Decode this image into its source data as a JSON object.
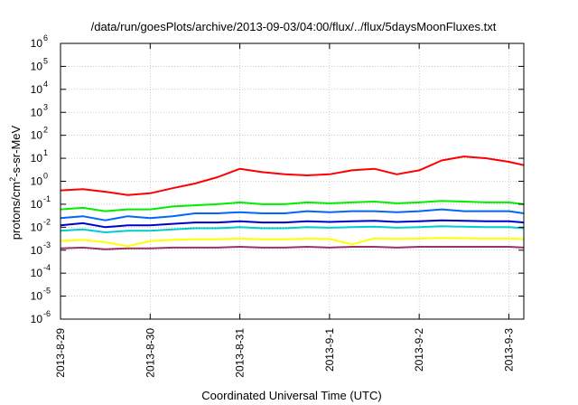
{
  "chart_data": {
    "type": "line",
    "title": "/data/run/goesPlots/archive/2013-09-03/04:00/flux/../flux/5daysMoonFluxes.txt",
    "xlabel": "Coordinated Universal Time (UTC)",
    "ylabel_parts": {
      "pre": "protons/cm",
      "sup": "2",
      "post": "-s-sr-MeV"
    },
    "y_scale": "log",
    "ylim": [
      1e-06,
      1000000.0
    ],
    "y_ticks": [
      {
        "value": 1e-06,
        "base": "10",
        "exp": "-6"
      },
      {
        "value": 1e-05,
        "base": "10",
        "exp": "-5"
      },
      {
        "value": 0.0001,
        "base": "10",
        "exp": "-4"
      },
      {
        "value": 0.001,
        "base": "10",
        "exp": "-3"
      },
      {
        "value": 0.01,
        "base": "10",
        "exp": "-2"
      },
      {
        "value": 0.1,
        "base": "10",
        "exp": "-1"
      },
      {
        "value": 1,
        "base": "10",
        "exp": "0"
      },
      {
        "value": 10,
        "base": "10",
        "exp": "1"
      },
      {
        "value": 100,
        "base": "10",
        "exp": "2"
      },
      {
        "value": 1000,
        "base": "10",
        "exp": "3"
      },
      {
        "value": 10000,
        "base": "10",
        "exp": "4"
      },
      {
        "value": 100000,
        "base": "10",
        "exp": "5"
      },
      {
        "value": 1000000,
        "base": "10",
        "exp": "6"
      }
    ],
    "xlim": [
      "2013-08-29T00:00",
      "2013-09-03T04:00"
    ],
    "x_ticks": [
      {
        "value": "2013-08-29T00:00",
        "label": "2013-8-29"
      },
      {
        "value": "2013-08-30T00:00",
        "label": "2013-8-30"
      },
      {
        "value": "2013-08-31T00:00",
        "label": "2013-8-31"
      },
      {
        "value": "2013-09-01T00:00",
        "label": "2013-9-1"
      },
      {
        "value": "2013-09-02T00:00",
        "label": "2013-9-2"
      },
      {
        "value": "2013-09-03T00:00",
        "label": "2013-9-3"
      }
    ],
    "grid": true,
    "series": [
      {
        "color": "#ff0000",
        "x": [
          "2013-08-29T00:00",
          "2013-08-29T06:00",
          "2013-08-29T12:00",
          "2013-08-29T18:00",
          "2013-08-30T00:00",
          "2013-08-30T06:00",
          "2013-08-30T12:00",
          "2013-08-30T18:00",
          "2013-08-31T00:00",
          "2013-08-31T06:00",
          "2013-08-31T12:00",
          "2013-08-31T18:00",
          "2013-09-01T00:00",
          "2013-09-01T06:00",
          "2013-09-01T12:00",
          "2013-09-01T18:00",
          "2013-09-02T00:00",
          "2013-09-02T06:00",
          "2013-09-02T12:00",
          "2013-09-02T18:00",
          "2013-09-03T00:00",
          "2013-09-03T04:00"
        ],
        "y": [
          0.4,
          0.45,
          0.35,
          0.25,
          0.3,
          0.5,
          0.8,
          1.5,
          3.5,
          2.5,
          2.0,
          1.8,
          2.0,
          3.0,
          3.5,
          2.0,
          3.0,
          8.0,
          12,
          10,
          7,
          5
        ]
      },
      {
        "color": "#00ee00",
        "x": [
          "2013-08-29T00:00",
          "2013-08-29T06:00",
          "2013-08-29T12:00",
          "2013-08-29T18:00",
          "2013-08-30T00:00",
          "2013-08-30T06:00",
          "2013-08-30T12:00",
          "2013-08-30T18:00",
          "2013-08-31T00:00",
          "2013-08-31T06:00",
          "2013-08-31T12:00",
          "2013-08-31T18:00",
          "2013-09-01T00:00",
          "2013-09-01T06:00",
          "2013-09-01T12:00",
          "2013-09-01T18:00",
          "2013-09-02T00:00",
          "2013-09-02T06:00",
          "2013-09-02T12:00",
          "2013-09-02T18:00",
          "2013-09-03T00:00",
          "2013-09-03T04:00"
        ],
        "y": [
          0.06,
          0.07,
          0.05,
          0.06,
          0.06,
          0.08,
          0.09,
          0.1,
          0.12,
          0.1,
          0.1,
          0.12,
          0.11,
          0.12,
          0.13,
          0.11,
          0.12,
          0.14,
          0.13,
          0.12,
          0.12,
          0.1
        ]
      },
      {
        "color": "#0066ff",
        "x": [
          "2013-08-29T00:00",
          "2013-08-29T06:00",
          "2013-08-29T12:00",
          "2013-08-29T18:00",
          "2013-08-30T00:00",
          "2013-08-30T06:00",
          "2013-08-30T12:00",
          "2013-08-30T18:00",
          "2013-08-31T00:00",
          "2013-08-31T06:00",
          "2013-08-31T12:00",
          "2013-08-31T18:00",
          "2013-09-01T00:00",
          "2013-09-01T06:00",
          "2013-09-01T12:00",
          "2013-09-01T18:00",
          "2013-09-02T00:00",
          "2013-09-02T06:00",
          "2013-09-02T12:00",
          "2013-09-02T18:00",
          "2013-09-03T00:00",
          "2013-09-03T04:00"
        ],
        "y": [
          0.025,
          0.03,
          0.02,
          0.03,
          0.025,
          0.03,
          0.04,
          0.04,
          0.045,
          0.04,
          0.04,
          0.05,
          0.045,
          0.05,
          0.05,
          0.045,
          0.05,
          0.06,
          0.05,
          0.05,
          0.05,
          0.04
        ]
      },
      {
        "color": "#0000cc",
        "x": [
          "2013-08-29T00:00",
          "2013-08-29T06:00",
          "2013-08-29T12:00",
          "2013-08-29T18:00",
          "2013-08-30T00:00",
          "2013-08-30T06:00",
          "2013-08-30T12:00",
          "2013-08-30T18:00",
          "2013-08-31T00:00",
          "2013-08-31T06:00",
          "2013-08-31T12:00",
          "2013-08-31T18:00",
          "2013-09-01T00:00",
          "2013-09-01T06:00",
          "2013-09-01T12:00",
          "2013-09-01T18:00",
          "2013-09-02T00:00",
          "2013-09-02T06:00",
          "2013-09-02T12:00",
          "2013-09-02T18:00",
          "2013-09-03T00:00",
          "2013-09-03T04:00"
        ],
        "y": [
          0.012,
          0.015,
          0.01,
          0.012,
          0.012,
          0.014,
          0.016,
          0.016,
          0.018,
          0.016,
          0.016,
          0.018,
          0.017,
          0.018,
          0.019,
          0.017,
          0.018,
          0.02,
          0.019,
          0.018,
          0.018,
          0.016
        ]
      },
      {
        "color": "#00cccc",
        "x": [
          "2013-08-29T00:00",
          "2013-08-29T06:00",
          "2013-08-29T12:00",
          "2013-08-29T18:00",
          "2013-08-30T00:00",
          "2013-08-30T06:00",
          "2013-08-30T12:00",
          "2013-08-30T18:00",
          "2013-08-31T00:00",
          "2013-08-31T06:00",
          "2013-08-31T12:00",
          "2013-08-31T18:00",
          "2013-09-01T00:00",
          "2013-09-01T06:00",
          "2013-09-01T12:00",
          "2013-09-01T18:00",
          "2013-09-02T00:00",
          "2013-09-02T06:00",
          "2013-09-02T12:00",
          "2013-09-02T18:00",
          "2013-09-03T00:00",
          "2013-09-03T04:00"
        ],
        "y": [
          0.007,
          0.008,
          0.006,
          0.007,
          0.007,
          0.008,
          0.009,
          0.009,
          0.01,
          0.009,
          0.009,
          0.01,
          0.0095,
          0.01,
          0.0105,
          0.0095,
          0.01,
          0.011,
          0.0105,
          0.01,
          0.01,
          0.009
        ]
      },
      {
        "color": "#ffff00",
        "x": [
          "2013-08-29T00:00",
          "2013-08-29T06:00",
          "2013-08-29T12:00",
          "2013-08-29T18:00",
          "2013-08-30T00:00",
          "2013-08-30T06:00",
          "2013-08-30T12:00",
          "2013-08-30T18:00",
          "2013-08-31T00:00",
          "2013-08-31T06:00",
          "2013-08-31T12:00",
          "2013-08-31T18:00",
          "2013-09-01T00:00",
          "2013-09-01T06:00",
          "2013-09-01T12:00",
          "2013-09-01T18:00",
          "2013-09-02T00:00",
          "2013-09-02T06:00",
          "2013-09-02T12:00",
          "2013-09-02T18:00",
          "2013-09-03T00:00",
          "2013-09-03T04:00"
        ],
        "y": [
          0.0025,
          0.0028,
          0.0022,
          0.0015,
          0.0025,
          0.0028,
          0.003,
          0.003,
          0.0032,
          0.003,
          0.003,
          0.0032,
          0.0031,
          0.0018,
          0.0033,
          0.0031,
          0.0032,
          0.0034,
          0.0033,
          0.0032,
          0.0032,
          0.003
        ]
      },
      {
        "color": "#993366",
        "x": [
          "2013-08-29T00:00",
          "2013-08-29T06:00",
          "2013-08-29T12:00",
          "2013-08-29T18:00",
          "2013-08-30T00:00",
          "2013-08-30T06:00",
          "2013-08-30T12:00",
          "2013-08-30T18:00",
          "2013-08-31T00:00",
          "2013-08-31T06:00",
          "2013-08-31T12:00",
          "2013-08-31T18:00",
          "2013-09-01T00:00",
          "2013-09-01T06:00",
          "2013-09-01T12:00",
          "2013-09-01T18:00",
          "2013-09-02T00:00",
          "2013-09-02T06:00",
          "2013-09-02T12:00",
          "2013-09-02T18:00",
          "2013-09-03T00:00",
          "2013-09-03T04:00"
        ],
        "y": [
          0.0012,
          0.0013,
          0.0011,
          0.0012,
          0.0012,
          0.0013,
          0.0013,
          0.0013,
          0.0014,
          0.0013,
          0.0013,
          0.0014,
          0.0013,
          0.0014,
          0.0014,
          0.0013,
          0.0014,
          0.0014,
          0.0014,
          0.0014,
          0.0014,
          0.0013
        ]
      }
    ]
  }
}
